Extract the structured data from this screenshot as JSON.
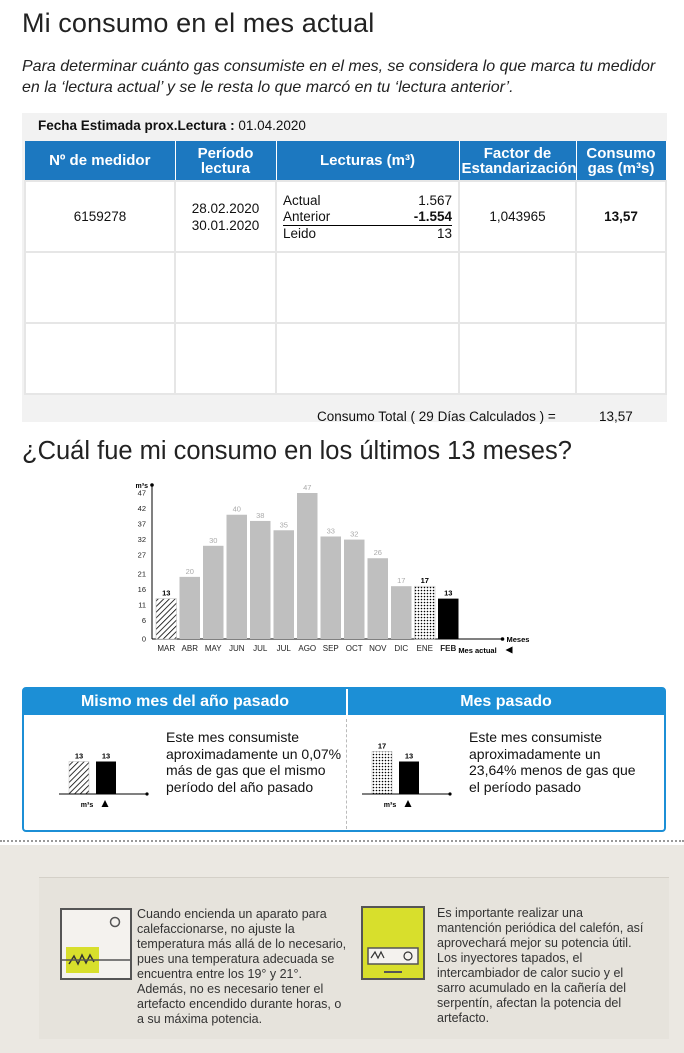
{
  "header": {
    "title": "Mi consumo en el mes actual",
    "intro": "Para determinar cuánto gas consumiste en el mes, se considera lo que marca tu medidor en la ‘lectura actual’ y se le resta lo que marcó en tu ‘lectura anterior’."
  },
  "reading": {
    "fecha_label": "Fecha Estimada prox.Lectura :",
    "fecha_value": "01.04.2020",
    "columns": {
      "medidor": "Nº de medidor",
      "periodo": "Período lectura",
      "lecturas": "Lecturas (m³)",
      "factor": "Factor de Estandarización",
      "consumo": "Consumo gas (m³s)"
    },
    "row": {
      "medidor": "6159278",
      "periodo_actual": "28.02.2020",
      "periodo_anterior": "30.01.2020",
      "actual_label": "Actual",
      "actual_value": "1.567",
      "anterior_label": "Anterior",
      "anterior_value": "-1.554",
      "leido_label": "Leido",
      "leido_value": "13",
      "factor": "1,043965",
      "consumo": "13,57"
    },
    "total_label": "Consumo Total ( 29 Días Calculados ) =",
    "total_value": "13,57"
  },
  "history": {
    "title": "¿Cuál fue mi consumo en los últimos 13 meses?"
  },
  "chart_data": {
    "type": "bar",
    "ylabel": "m³s",
    "xlabel": "Meses",
    "current_label": "Mes actual",
    "yticks": [
      0,
      6,
      11,
      16,
      21,
      27,
      32,
      37,
      42,
      47
    ],
    "ylim": [
      0,
      47
    ],
    "categories": [
      "MAR",
      "ABR",
      "MAY",
      "JUN",
      "JUL",
      "JUL",
      "AGO",
      "SEP",
      "OCT",
      "NOV",
      "DIC",
      "ENE",
      "FEB"
    ],
    "values": [
      13,
      20,
      30,
      40,
      38,
      35,
      47,
      33,
      32,
      26,
      17,
      17,
      13
    ],
    "styles": [
      "hatched",
      "gray",
      "gray",
      "gray",
      "gray",
      "gray",
      "gray",
      "gray",
      "gray",
      "gray",
      "gray",
      "dotted",
      "black"
    ],
    "colors": {
      "gray": "#bfbfbf",
      "current": "#000000",
      "blue": "#1c8fd6"
    }
  },
  "comparison": {
    "left": {
      "title": "Mismo mes del año pasado",
      "text": "Este mes consumiste aproximadamente un 0,07% más de gas que el mismo período del año pasado",
      "bars": [
        13,
        13
      ],
      "unit": "m³s"
    },
    "right": {
      "title": "Mes pasado",
      "text": "Este mes consumiste aproximadamente un 23,64% menos de gas que el período pasado",
      "bars": [
        17,
        13
      ],
      "unit": "m³s"
    }
  },
  "tips": {
    "left": "Cuando encienda un aparato para calefaccionarse, no ajuste la temperatura más allá de lo necesario, pues una temperatura adecuada se encuentra entre los 19° y 21°. Además, no es necesario tener el artefacto encendido durante horas, o a su máxima potencia.",
    "right": "Es importante realizar una mantención periódica del calefón, así aprovechará mejor su potencia útil. Los inyectores tapados, el intercambiador de calor sucio y el sarro acumulado en la cañería del serpentín, afectan la potencia del artefacto."
  }
}
